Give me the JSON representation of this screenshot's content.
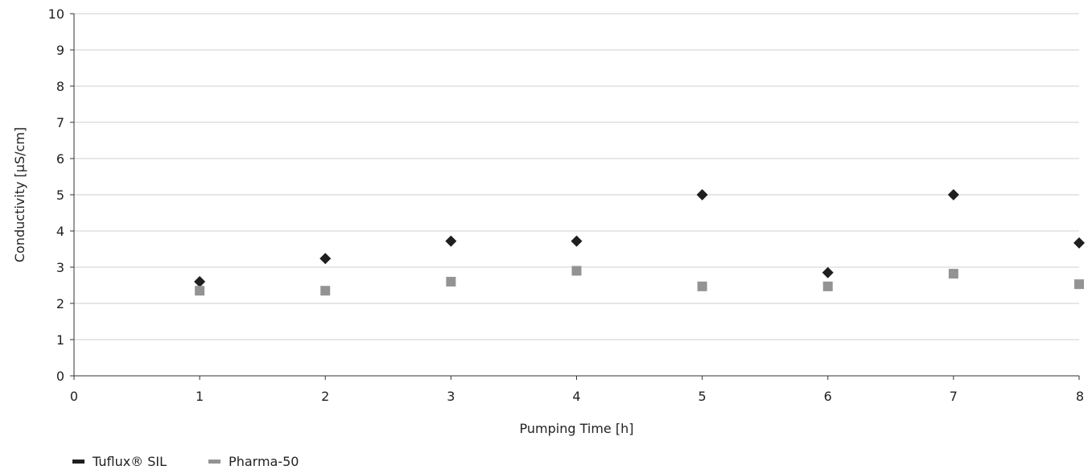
{
  "chart_data": {
    "type": "scatter",
    "xlabel": "Pumping Time [h]",
    "ylabel": "Conductivity [µS/cm]",
    "xlim": [
      0,
      8
    ],
    "ylim": [
      0,
      10
    ],
    "x_ticks": [
      "0",
      "1",
      "2",
      "3",
      "4",
      "5",
      "6",
      "7",
      "8"
    ],
    "y_ticks": [
      "0",
      "1",
      "2",
      "3",
      "4",
      "5",
      "6",
      "7",
      "8",
      "9",
      "10"
    ],
    "grid": "horizontal",
    "legend_position": "bottom-left",
    "series": [
      {
        "name": "Tuflux® SIL",
        "marker": "diamond",
        "color": "#1f1f1f",
        "x": [
          1,
          2,
          3,
          4,
          5,
          6,
          7,
          8
        ],
        "y": [
          2.6,
          3.24,
          3.72,
          3.72,
          5.0,
          2.85,
          5.0,
          3.67
        ]
      },
      {
        "name": "Pharma-50",
        "marker": "square",
        "color": "#939393",
        "x": [
          1,
          2,
          3,
          4,
          5,
          6,
          7,
          8
        ],
        "y": [
          2.35,
          2.35,
          2.6,
          2.9,
          2.47,
          2.47,
          2.82,
          2.53
        ]
      }
    ]
  }
}
